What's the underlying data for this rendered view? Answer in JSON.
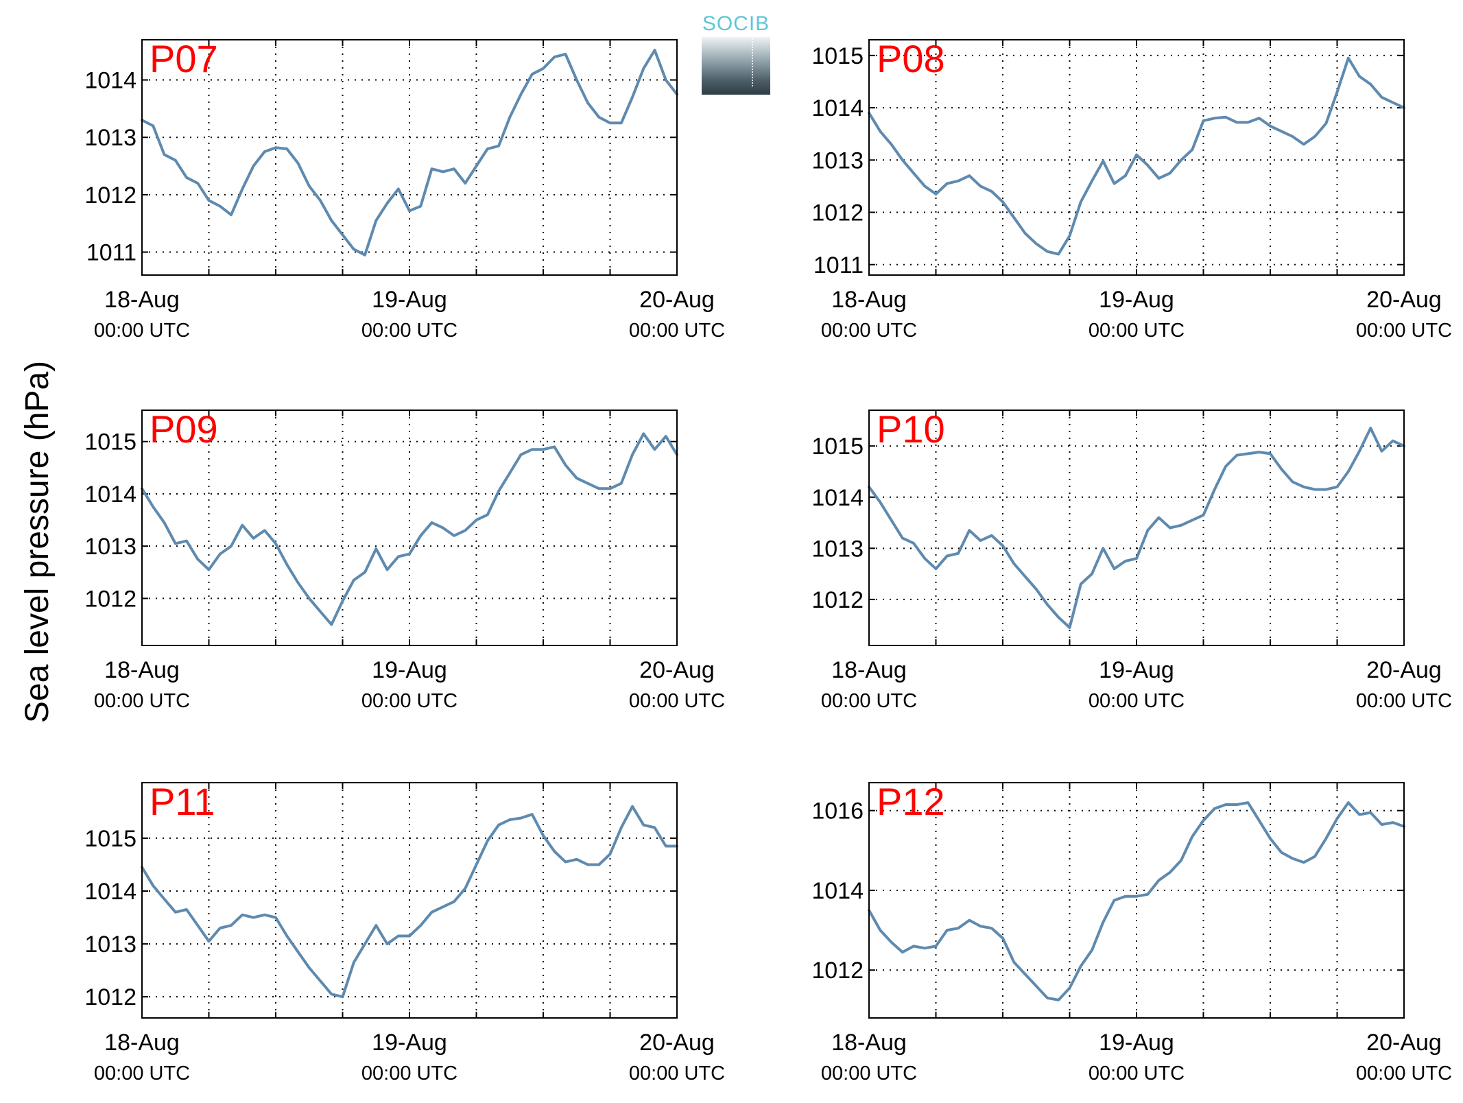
{
  "figure": {
    "ylabel": "Sea level pressure (hPa)",
    "line_color": "#5f8aaf",
    "station_label_color": "#ff0000",
    "logo": {
      "text": "SOCIB",
      "text_color": "#5fc6d8"
    }
  },
  "chart_data": [
    {
      "type": "line",
      "station": "P07",
      "x_ticks": [
        {
          "line1": "18-Aug",
          "line2": "00:00 UTC"
        },
        {
          "line1": "19-Aug",
          "line2": "00:00 UTC"
        },
        {
          "line1": "20-Aug",
          "line2": "00:00 UTC"
        }
      ],
      "xlim": [
        "18-Aug 00:00",
        "20-Aug 00:00"
      ],
      "y_ticks": [
        1011,
        1012,
        1013,
        1014
      ],
      "ylim": [
        1010.6,
        1014.7
      ],
      "grid": "dotted",
      "series": [
        {
          "x_hours": [
            0,
            1,
            2,
            3,
            4,
            5,
            6,
            7,
            8,
            9,
            10,
            11,
            12,
            13,
            14,
            15,
            16,
            17,
            18,
            19,
            20,
            21,
            22,
            23,
            24,
            25,
            26,
            27,
            28,
            29,
            30,
            31,
            32,
            33,
            34,
            35,
            36,
            37,
            38,
            39,
            40,
            41,
            42,
            43,
            44,
            45,
            46,
            47,
            48
          ],
          "values": [
            1013.3,
            1013.2,
            1012.7,
            1012.6,
            1012.3,
            1012.2,
            1011.9,
            1011.8,
            1011.65,
            1012.1,
            1012.5,
            1012.75,
            1012.82,
            1012.8,
            1012.55,
            1012.15,
            1011.9,
            1011.55,
            1011.3,
            1011.05,
            1010.95,
            1011.55,
            1011.85,
            1012.1,
            1011.72,
            1011.8,
            1012.45,
            1012.4,
            1012.45,
            1012.2,
            1012.5,
            1012.8,
            1012.85,
            1013.35,
            1013.75,
            1014.1,
            1014.2,
            1014.4,
            1014.45,
            1014.0,
            1013.6,
            1013.35,
            1013.25,
            1013.25,
            1013.7,
            1014.2,
            1014.52,
            1014.0,
            1013.75
          ]
        }
      ]
    },
    {
      "type": "line",
      "station": "P08",
      "x_ticks": [
        {
          "line1": "18-Aug",
          "line2": "00:00 UTC"
        },
        {
          "line1": "19-Aug",
          "line2": "00:00 UTC"
        },
        {
          "line1": "20-Aug",
          "line2": "00:00 UTC"
        }
      ],
      "xlim": [
        "18-Aug 00:00",
        "20-Aug 00:00"
      ],
      "y_ticks": [
        1011,
        1012,
        1013,
        1014,
        1015
      ],
      "ylim": [
        1010.8,
        1015.3
      ],
      "grid": "dotted",
      "series": [
        {
          "x_hours": [
            0,
            1,
            2,
            3,
            4,
            5,
            6,
            7,
            8,
            9,
            10,
            11,
            12,
            13,
            14,
            15,
            16,
            17,
            18,
            19,
            20,
            21,
            22,
            23,
            24,
            25,
            26,
            27,
            28,
            29,
            30,
            31,
            32,
            33,
            34,
            35,
            36,
            37,
            38,
            39,
            40,
            41,
            42,
            43,
            44,
            45,
            46,
            47,
            48
          ],
          "values": [
            1013.9,
            1013.55,
            1013.3,
            1013.0,
            1012.75,
            1012.5,
            1012.35,
            1012.55,
            1012.6,
            1012.7,
            1012.5,
            1012.4,
            1012.2,
            1011.9,
            1011.6,
            1011.4,
            1011.25,
            1011.2,
            1011.55,
            1012.2,
            1012.6,
            1012.98,
            1012.55,
            1012.7,
            1013.1,
            1012.9,
            1012.65,
            1012.75,
            1013.0,
            1013.2,
            1013.75,
            1013.8,
            1013.82,
            1013.72,
            1013.72,
            1013.8,
            1013.65,
            1013.55,
            1013.45,
            1013.3,
            1013.45,
            1013.7,
            1014.3,
            1014.95,
            1014.6,
            1014.45,
            1014.2,
            1014.1,
            1014.0
          ]
        }
      ]
    },
    {
      "type": "line",
      "station": "P09",
      "x_ticks": [
        {
          "line1": "18-Aug",
          "line2": "00:00 UTC"
        },
        {
          "line1": "19-Aug",
          "line2": "00:00 UTC"
        },
        {
          "line1": "20-Aug",
          "line2": "00:00 UTC"
        }
      ],
      "xlim": [
        "18-Aug 00:00",
        "20-Aug 00:00"
      ],
      "y_ticks": [
        1012,
        1013,
        1014,
        1015
      ],
      "ylim": [
        1011.1,
        1015.6
      ],
      "grid": "dotted",
      "series": [
        {
          "x_hours": [
            0,
            1,
            2,
            3,
            4,
            5,
            6,
            7,
            8,
            9,
            10,
            11,
            12,
            13,
            14,
            15,
            16,
            17,
            18,
            19,
            20,
            21,
            22,
            23,
            24,
            25,
            26,
            27,
            28,
            29,
            30,
            31,
            32,
            33,
            34,
            35,
            36,
            37,
            38,
            39,
            40,
            41,
            42,
            43,
            44,
            45,
            46,
            47,
            48
          ],
          "values": [
            1014.1,
            1013.75,
            1013.45,
            1013.05,
            1013.1,
            1012.75,
            1012.55,
            1012.85,
            1013.0,
            1013.4,
            1013.15,
            1013.3,
            1013.05,
            1012.65,
            1012.3,
            1012.0,
            1011.75,
            1011.5,
            1011.95,
            1012.35,
            1012.5,
            1012.95,
            1012.55,
            1012.8,
            1012.85,
            1013.2,
            1013.45,
            1013.35,
            1013.2,
            1013.3,
            1013.5,
            1013.6,
            1014.05,
            1014.4,
            1014.75,
            1014.85,
            1014.85,
            1014.9,
            1014.55,
            1014.3,
            1014.2,
            1014.1,
            1014.1,
            1014.2,
            1014.75,
            1015.15,
            1014.85,
            1015.1,
            1014.75
          ]
        }
      ]
    },
    {
      "type": "line",
      "station": "P10",
      "x_ticks": [
        {
          "line1": "18-Aug",
          "line2": "00:00 UTC"
        },
        {
          "line1": "19-Aug",
          "line2": "00:00 UTC"
        },
        {
          "line1": "20-Aug",
          "line2": "00:00 UTC"
        }
      ],
      "xlim": [
        "18-Aug 00:00",
        "20-Aug 00:00"
      ],
      "y_ticks": [
        1012,
        1013,
        1014,
        1015
      ],
      "ylim": [
        1011.1,
        1015.7
      ],
      "grid": "dotted",
      "series": [
        {
          "x_hours": [
            0,
            1,
            2,
            3,
            4,
            5,
            6,
            7,
            8,
            9,
            10,
            11,
            12,
            13,
            14,
            15,
            16,
            17,
            18,
            19,
            20,
            21,
            22,
            23,
            24,
            25,
            26,
            27,
            28,
            29,
            30,
            31,
            32,
            33,
            34,
            35,
            36,
            37,
            38,
            39,
            40,
            41,
            42,
            43,
            44,
            45,
            46,
            47,
            48
          ],
          "values": [
            1014.2,
            1013.9,
            1013.55,
            1013.2,
            1013.1,
            1012.8,
            1012.6,
            1012.85,
            1012.9,
            1013.35,
            1013.15,
            1013.25,
            1013.05,
            1012.7,
            1012.45,
            1012.2,
            1011.9,
            1011.65,
            1011.45,
            1012.3,
            1012.5,
            1013.0,
            1012.6,
            1012.75,
            1012.8,
            1013.35,
            1013.6,
            1013.4,
            1013.45,
            1013.55,
            1013.65,
            1014.15,
            1014.6,
            1014.82,
            1014.85,
            1014.88,
            1014.85,
            1014.55,
            1014.3,
            1014.2,
            1014.15,
            1014.15,
            1014.2,
            1014.5,
            1014.9,
            1015.35,
            1014.9,
            1015.1,
            1015.0
          ]
        }
      ]
    },
    {
      "type": "line",
      "station": "P11",
      "x_ticks": [
        {
          "line1": "18-Aug",
          "line2": "00:00 UTC"
        },
        {
          "line1": "19-Aug",
          "line2": "00:00 UTC"
        },
        {
          "line1": "20-Aug",
          "line2": "00:00 UTC"
        }
      ],
      "xlim": [
        "18-Aug 00:00",
        "20-Aug 00:00"
      ],
      "y_ticks": [
        1012,
        1013,
        1014,
        1015
      ],
      "ylim": [
        1011.6,
        1016.05
      ],
      "grid": "dotted",
      "series": [
        {
          "x_hours": [
            0,
            1,
            2,
            3,
            4,
            5,
            6,
            7,
            8,
            9,
            10,
            11,
            12,
            13,
            14,
            15,
            16,
            17,
            18,
            19,
            20,
            21,
            22,
            23,
            24,
            25,
            26,
            27,
            28,
            29,
            30,
            31,
            32,
            33,
            34,
            35,
            36,
            37,
            38,
            39,
            40,
            41,
            42,
            43,
            44,
            45,
            46,
            47,
            48
          ],
          "values": [
            1014.45,
            1014.1,
            1013.85,
            1013.6,
            1013.65,
            1013.35,
            1013.05,
            1013.3,
            1013.35,
            1013.55,
            1013.5,
            1013.55,
            1013.5,
            1013.15,
            1012.85,
            1012.55,
            1012.3,
            1012.05,
            1012.0,
            1012.65,
            1013.0,
            1013.35,
            1013.0,
            1013.15,
            1013.15,
            1013.35,
            1013.6,
            1013.7,
            1013.8,
            1014.05,
            1014.5,
            1014.95,
            1015.25,
            1015.35,
            1015.38,
            1015.45,
            1015.05,
            1014.75,
            1014.55,
            1014.6,
            1014.5,
            1014.5,
            1014.7,
            1015.2,
            1015.6,
            1015.25,
            1015.2,
            1014.85,
            1014.85
          ]
        }
      ]
    },
    {
      "type": "line",
      "station": "P12",
      "x_ticks": [
        {
          "line1": "18-Aug",
          "line2": "00:00 UTC"
        },
        {
          "line1": "19-Aug",
          "line2": "00:00 UTC"
        },
        {
          "line1": "20-Aug",
          "line2": "00:00 UTC"
        }
      ],
      "xlim": [
        "18-Aug 00:00",
        "20-Aug 00:00"
      ],
      "y_ticks": [
        1012,
        1014,
        1016
      ],
      "ylim": [
        1010.8,
        1016.7
      ],
      "grid": "dotted",
      "series": [
        {
          "x_hours": [
            0,
            1,
            2,
            3,
            4,
            5,
            6,
            7,
            8,
            9,
            10,
            11,
            12,
            13,
            14,
            15,
            16,
            17,
            18,
            19,
            20,
            21,
            22,
            23,
            24,
            25,
            26,
            27,
            28,
            29,
            30,
            31,
            32,
            33,
            34,
            35,
            36,
            37,
            38,
            39,
            40,
            41,
            42,
            43,
            44,
            45,
            46,
            47,
            48
          ],
          "values": [
            1013.5,
            1013.0,
            1012.7,
            1012.45,
            1012.6,
            1012.55,
            1012.6,
            1013.0,
            1013.05,
            1013.25,
            1013.1,
            1013.05,
            1012.8,
            1012.2,
            1011.9,
            1011.6,
            1011.3,
            1011.25,
            1011.55,
            1012.1,
            1012.5,
            1013.2,
            1013.75,
            1013.85,
            1013.85,
            1013.9,
            1014.25,
            1014.45,
            1014.75,
            1015.35,
            1015.75,
            1016.05,
            1016.15,
            1016.15,
            1016.2,
            1015.75,
            1015.3,
            1014.95,
            1014.8,
            1014.7,
            1014.85,
            1015.3,
            1015.8,
            1016.2,
            1015.9,
            1015.95,
            1015.65,
            1015.7,
            1015.6
          ]
        }
      ]
    }
  ]
}
